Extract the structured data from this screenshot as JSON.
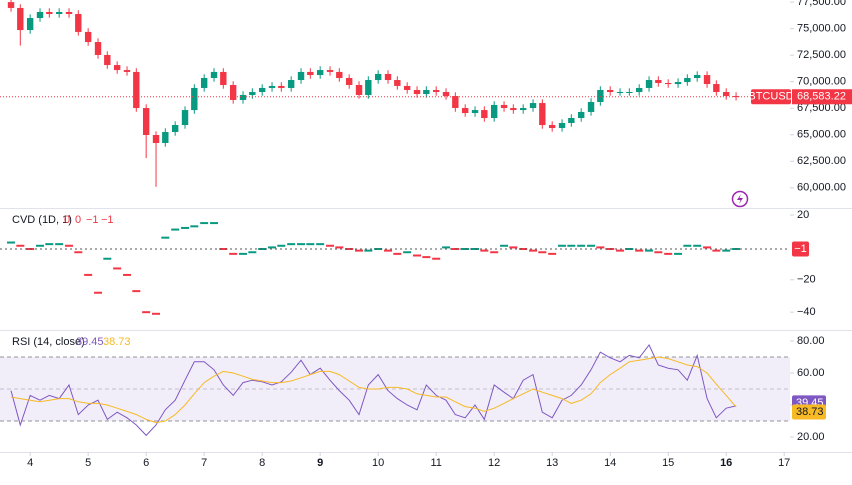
{
  "chart_data": [
    {
      "type": "candlestick",
      "symbol": "BTCUSD",
      "last_price": {
        "value": 68583.22,
        "label": "68,583.22"
      },
      "up_color": "#089981",
      "down_color": "#f23645",
      "x": [
        3.67,
        3.83,
        4,
        4.17,
        4.33,
        4.5,
        4.67,
        4.83,
        5,
        5.17,
        5.33,
        5.5,
        5.67,
        5.83,
        6,
        6.17,
        6.33,
        6.5,
        6.67,
        6.83,
        7,
        7.17,
        7.33,
        7.5,
        7.67,
        7.83,
        8,
        8.17,
        8.33,
        8.5,
        8.67,
        8.83,
        9,
        9.17,
        9.33,
        9.5,
        9.67,
        9.83,
        10,
        10.17,
        10.33,
        10.5,
        10.67,
        10.83,
        11,
        11.17,
        11.33,
        11.5,
        11.67,
        11.83,
        12,
        12.17,
        12.33,
        12.5,
        12.67,
        12.83,
        13,
        13.17,
        13.33,
        13.5,
        13.67,
        13.83,
        14,
        14.17,
        14.33,
        14.5,
        14.67,
        14.83,
        15,
        15.17,
        15.33,
        15.5,
        15.67,
        15.83,
        16,
        16.17
      ],
      "open": [
        77500,
        76950,
        74870,
        76000,
        76570,
        76380,
        76570,
        76380,
        74690,
        73740,
        72520,
        71570,
        71100,
        70920,
        67520,
        64980,
        64225,
        65260,
        65920,
        67330,
        69410,
        70350,
        70920,
        69690,
        68280,
        68750,
        69030,
        69410,
        69600,
        69410,
        70160,
        70920,
        70630,
        71100,
        70920,
        70350,
        69690,
        68750,
        70160,
        70730,
        70160,
        69600,
        69220,
        68840,
        69220,
        69030,
        68650,
        67520,
        67050,
        67330,
        66580,
        67810,
        67520,
        67330,
        67520,
        67990,
        65920,
        65640,
        66110,
        66580,
        67150,
        68090,
        69220,
        69030,
        69030,
        69030,
        69410,
        70160,
        69880,
        69780,
        69970,
        70350,
        70630,
        69780,
        69030,
        68650
      ],
      "high": [
        77850,
        77300,
        76350,
        76920,
        76920,
        76920,
        76920,
        76730,
        75040,
        74090,
        72870,
        71920,
        71450,
        71270,
        67870,
        65330,
        65610,
        66270,
        67680,
        69760,
        70700,
        71270,
        71270,
        70040,
        69100,
        69380,
        69760,
        69950,
        69950,
        70510,
        71270,
        71270,
        71450,
        71450,
        71270,
        70700,
        70040,
        70510,
        71080,
        71080,
        70510,
        69950,
        69570,
        69570,
        69570,
        69380,
        69000,
        67870,
        67680,
        67680,
        68160,
        68160,
        67870,
        67870,
        68340,
        68340,
        66270,
        66460,
        66930,
        67500,
        68440,
        69570,
        69570,
        69380,
        69380,
        69760,
        70510,
        70510,
        70230,
        70320,
        70700,
        70980,
        70980,
        70130,
        69380,
        69000
      ],
      "low": [
        76600,
        73400,
        74520,
        75650,
        76030,
        76030,
        76030,
        74340,
        73390,
        72170,
        71220,
        70750,
        70570,
        67170,
        62800,
        60100,
        63875,
        64910,
        65570,
        66980,
        69060,
        70000,
        69340,
        67930,
        67930,
        68400,
        68680,
        69060,
        69060,
        69060,
        69810,
        70280,
        70280,
        70570,
        70000,
        69340,
        68400,
        68400,
        69810,
        69810,
        69250,
        68870,
        68490,
        68490,
        68680,
        68300,
        67170,
        66700,
        66700,
        66230,
        66230,
        67170,
        66980,
        66980,
        67170,
        65570,
        65290,
        65290,
        65760,
        66230,
        66800,
        67740,
        68680,
        68680,
        68680,
        68680,
        69060,
        69530,
        69430,
        69430,
        69620,
        70000,
        69430,
        68680,
        68300,
        68233
      ],
      "close": [
        76950,
        74870,
        76000,
        76570,
        76380,
        76570,
        76380,
        74690,
        73740,
        72520,
        71570,
        71100,
        70920,
        67520,
        64980,
        64225,
        65260,
        65920,
        67330,
        69410,
        70350,
        70920,
        69690,
        68280,
        68750,
        69030,
        69410,
        69600,
        69410,
        70160,
        70920,
        70630,
        71100,
        70920,
        70350,
        69690,
        68750,
        70160,
        70730,
        70160,
        69600,
        69220,
        68840,
        69220,
        69030,
        68650,
        67520,
        67050,
        67330,
        66580,
        67810,
        67520,
        67330,
        67520,
        67990,
        65920,
        65640,
        66110,
        66580,
        67150,
        68090,
        69220,
        69030,
        69030,
        69030,
        69410,
        70160,
        69880,
        69780,
        69970,
        70350,
        70630,
        69780,
        69030,
        68650,
        68583.22
      ],
      "ylim": [
        58100,
        77700
      ],
      "yticks": [
        {
          "value": 77500,
          "label": "77,500.00"
        },
        {
          "value": 75000,
          "label": "75,000.00"
        },
        {
          "value": 72500,
          "label": "72,500.00"
        },
        {
          "value": 70000,
          "label": "70,000.00"
        },
        {
          "value": 67500,
          "label": "67,500.00"
        },
        {
          "value": 65000,
          "label": "65,000.00"
        },
        {
          "value": 62500,
          "label": "62,500.00"
        },
        {
          "value": 60000,
          "label": "60,000.00"
        }
      ]
    },
    {
      "type": "line",
      "marker": "tick",
      "title": "CVD (1D, 1)",
      "legend_values": [
        0,
        0,
        {
          "value": -1,
          "label": "−1"
        },
        {
          "value": -1,
          "label": "−1"
        }
      ],
      "last": {
        "value": -1,
        "label": "−1"
      },
      "up_color": "#089981",
      "down_color": "#f23645",
      "x": [
        3.67,
        3.83,
        4,
        4.17,
        4.33,
        4.5,
        4.67,
        4.83,
        5,
        5.17,
        5.33,
        5.5,
        5.67,
        5.83,
        6,
        6.17,
        6.33,
        6.5,
        6.67,
        6.83,
        7,
        7.17,
        7.33,
        7.5,
        7.67,
        7.83,
        8,
        8.17,
        8.33,
        8.5,
        8.67,
        8.83,
        9,
        9.17,
        9.33,
        9.5,
        9.67,
        9.83,
        10,
        10.17,
        10.33,
        10.5,
        10.67,
        10.83,
        11,
        11.17,
        11.33,
        11.5,
        11.67,
        11.83,
        12,
        12.17,
        12.33,
        12.5,
        12.67,
        12.83,
        13,
        13.17,
        13.33,
        13.5,
        13.67,
        13.83,
        14,
        14.17,
        14.33,
        14.5,
        14.67,
        14.83,
        15,
        15.17,
        15.33,
        15.5,
        15.67,
        15.83,
        16,
        16.17
      ],
      "values": [
        3,
        1,
        -1,
        1,
        2,
        2,
        1,
        -3,
        -17,
        -28,
        -7,
        -13,
        -17,
        -27,
        -40,
        -41,
        6,
        11,
        12,
        13,
        15,
        15,
        -1,
        -4,
        -4,
        -3,
        -1,
        0,
        1,
        2,
        2,
        2,
        2,
        1,
        0,
        -1,
        -2,
        -2,
        -1,
        -2,
        -4,
        -3,
        -5,
        -6,
        -7,
        0,
        -1,
        -1,
        -1,
        -2,
        -3,
        1,
        0,
        -1,
        -2,
        -3,
        -4,
        1,
        1,
        1,
        1,
        0,
        -1,
        -2,
        -1,
        -2,
        -2,
        -3,
        -4,
        -4,
        1,
        1,
        0,
        -2,
        -2,
        -1
      ],
      "ylim": [
        -51,
        23.7
      ],
      "yticks": [
        20,
        {
          "value": -20,
          "label": "−20"
        },
        {
          "value": -40,
          "label": "−40"
        }
      ]
    },
    {
      "type": "line",
      "title": "RSI (14, close)",
      "band_color": "#7e57c2",
      "x": [
        3.67,
        3.83,
        4,
        4.17,
        4.33,
        4.5,
        4.67,
        4.83,
        5,
        5.17,
        5.33,
        5.5,
        5.67,
        5.83,
        6,
        6.17,
        6.33,
        6.5,
        6.67,
        6.83,
        7,
        7.17,
        7.33,
        7.5,
        7.67,
        7.83,
        8,
        8.17,
        8.33,
        8.5,
        8.67,
        8.83,
        9,
        9.17,
        9.33,
        9.5,
        9.67,
        9.83,
        10,
        10.17,
        10.33,
        10.5,
        10.67,
        10.83,
        11,
        11.17,
        11.33,
        11.5,
        11.67,
        11.83,
        12,
        12.17,
        12.33,
        12.5,
        12.67,
        12.83,
        13,
        13.17,
        13.33,
        13.5,
        13.67,
        13.83,
        14,
        14.17,
        14.33,
        14.5,
        14.67,
        14.83,
        15,
        15.17,
        15.33,
        15.5,
        15.67,
        15.83,
        16,
        16.17
      ],
      "series": [
        {
          "color": "#7e57c2",
          "values": [
            49,
            27.5,
            46,
            43,
            46,
            44,
            52.5,
            34,
            40,
            43,
            31,
            35.5,
            32,
            27.5,
            21,
            27.5,
            37,
            43,
            55.5,
            67,
            67,
            62,
            52.5,
            46,
            54,
            55.5,
            54.5,
            52.5,
            54.5,
            60.5,
            68,
            59,
            63,
            55.5,
            49,
            43,
            34,
            52.5,
            59,
            49,
            44,
            40,
            37,
            52.5,
            46,
            43,
            34,
            32,
            40,
            31,
            52.5,
            48,
            44,
            55.5,
            59,
            35.5,
            32,
            43,
            46,
            52.5,
            62,
            73,
            69.5,
            67,
            71,
            69.5,
            77.5,
            65,
            63,
            62,
            55.5,
            71,
            44,
            32,
            38,
            39.45
          ]
        },
        {
          "color": "#f7b924",
          "values": [
            45,
            44,
            43,
            42,
            43,
            44,
            44,
            42,
            41,
            41,
            40,
            38,
            36,
            34,
            31,
            29,
            30,
            34,
            40,
            47,
            54,
            58,
            61,
            60,
            58,
            56,
            55,
            54,
            54,
            55,
            57,
            59,
            61,
            61,
            59,
            55,
            51,
            50,
            50,
            51,
            51,
            50,
            47,
            46,
            45,
            45,
            42,
            39,
            38,
            36,
            38,
            41,
            44,
            47,
            50,
            48,
            46,
            44,
            41,
            43,
            47,
            54,
            59,
            63,
            67,
            68,
            69,
            70,
            69,
            67,
            65,
            64,
            60,
            53,
            46,
            38.73
          ]
        }
      ],
      "bands": [
        70,
        50,
        30
      ],
      "ylim": [
        10.6,
        86.25
      ],
      "yticks": [
        {
          "value": 80,
          "label": "80.00"
        },
        {
          "value": 60,
          "label": "60.00"
        },
        {
          "value": 40,
          "label": "40.00"
        },
        {
          "value": 20,
          "label": "20.00"
        }
      ],
      "xlim": [
        3.48,
        17.1
      ],
      "xticks": [
        4,
        5,
        6,
        7,
        8,
        9,
        10,
        11,
        12,
        13,
        14,
        15,
        16,
        17
      ]
    }
  ]
}
